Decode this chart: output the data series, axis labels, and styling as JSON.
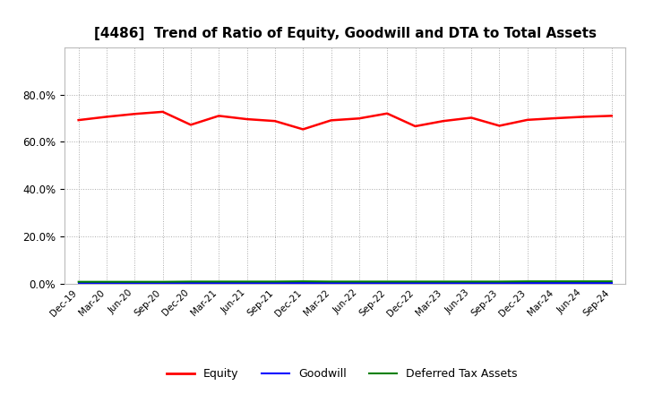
{
  "title": "[4486]  Trend of Ratio of Equity, Goodwill and DTA to Total Assets",
  "x_labels": [
    "Dec-19",
    "Mar-20",
    "Jun-20",
    "Sep-20",
    "Dec-20",
    "Mar-21",
    "Jun-21",
    "Sep-21",
    "Dec-21",
    "Mar-22",
    "Jun-22",
    "Sep-22",
    "Dec-22",
    "Mar-23",
    "Jun-23",
    "Sep-23",
    "Dec-23",
    "Mar-24",
    "Jun-24",
    "Sep-24"
  ],
  "equity": [
    0.692,
    0.706,
    0.718,
    0.727,
    0.672,
    0.71,
    0.696,
    0.688,
    0.653,
    0.691,
    0.699,
    0.72,
    0.666,
    0.688,
    0.702,
    0.668,
    0.693,
    0.7,
    0.706,
    0.71
  ],
  "goodwill": [
    0.002,
    0.002,
    0.002,
    0.002,
    0.002,
    0.002,
    0.002,
    0.002,
    0.002,
    0.002,
    0.002,
    0.002,
    0.002,
    0.002,
    0.002,
    0.002,
    0.002,
    0.002,
    0.002,
    0.002
  ],
  "dta": [
    0.008,
    0.008,
    0.008,
    0.008,
    0.009,
    0.009,
    0.009,
    0.009,
    0.01,
    0.009,
    0.009,
    0.009,
    0.009,
    0.009,
    0.009,
    0.009,
    0.01,
    0.01,
    0.01,
    0.01
  ],
  "equity_color": "#FF0000",
  "goodwill_color": "#0000FF",
  "dta_color": "#008000",
  "ylim": [
    0.0,
    1.0
  ],
  "yticks": [
    0.0,
    0.2,
    0.4,
    0.6,
    0.8
  ],
  "background_color": "#FFFFFF",
  "plot_bg_color": "#FFFFFF",
  "grid_color": "#AAAAAA",
  "title_fontsize": 11,
  "legend_labels": [
    "Equity",
    "Goodwill",
    "Deferred Tax Assets"
  ]
}
